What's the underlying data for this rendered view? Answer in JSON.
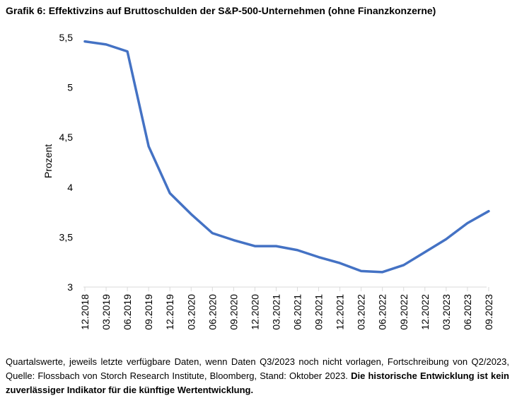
{
  "title": "Grafik 6: Effektivzins auf Bruttoschulden der S&P-500-Unternehmen (ohne Finanzkonzerne)",
  "chart_data": {
    "type": "line",
    "title": "Grafik 6: Effektivzins auf Bruttoschulden der S&P-500-Unternehmen (ohne Finanzkonzerne)",
    "xlabel": "",
    "ylabel": "Prozent",
    "ylim": [
      3,
      5.5
    ],
    "yticks": [
      3,
      3.5,
      4,
      4.5,
      5,
      5.5
    ],
    "ytick_labels": [
      "3",
      "3,5",
      "4",
      "4,5",
      "5",
      "5,5"
    ],
    "categories": [
      "12.2018",
      "03.2019",
      "06.2019",
      "09.2019",
      "12.2019",
      "03.2020",
      "06.2020",
      "09.2020",
      "12.2020",
      "03.2021",
      "06.2021",
      "09.2021",
      "12.2021",
      "03.2022",
      "06.2022",
      "09.2022",
      "12.2022",
      "03.2023",
      "06.2023",
      "09.2023"
    ],
    "series": [
      {
        "name": "Effektivzins",
        "color": "#4472C4",
        "values": [
          5.46,
          5.43,
          5.36,
          4.41,
          3.94,
          3.73,
          3.54,
          3.47,
          3.41,
          3.41,
          3.37,
          3.3,
          3.24,
          3.16,
          3.15,
          3.22,
          3.35,
          3.48,
          3.64,
          3.76
        ]
      }
    ],
    "grid": false,
    "legend": "none"
  },
  "footnote": {
    "text": "Quartalswerte, jeweils letzte verfügbare Daten, wenn Daten Q3/2023 noch nicht vorlagen, Fortschreibung von Q2/2023, Quelle: Flossbach von Storch Research Institute, Bloomberg, Stand: Oktober 2023. ",
    "bold": "Die historische Entwicklung ist kein zuverlässiger Indikator für die künftige Wertentwicklung."
  }
}
